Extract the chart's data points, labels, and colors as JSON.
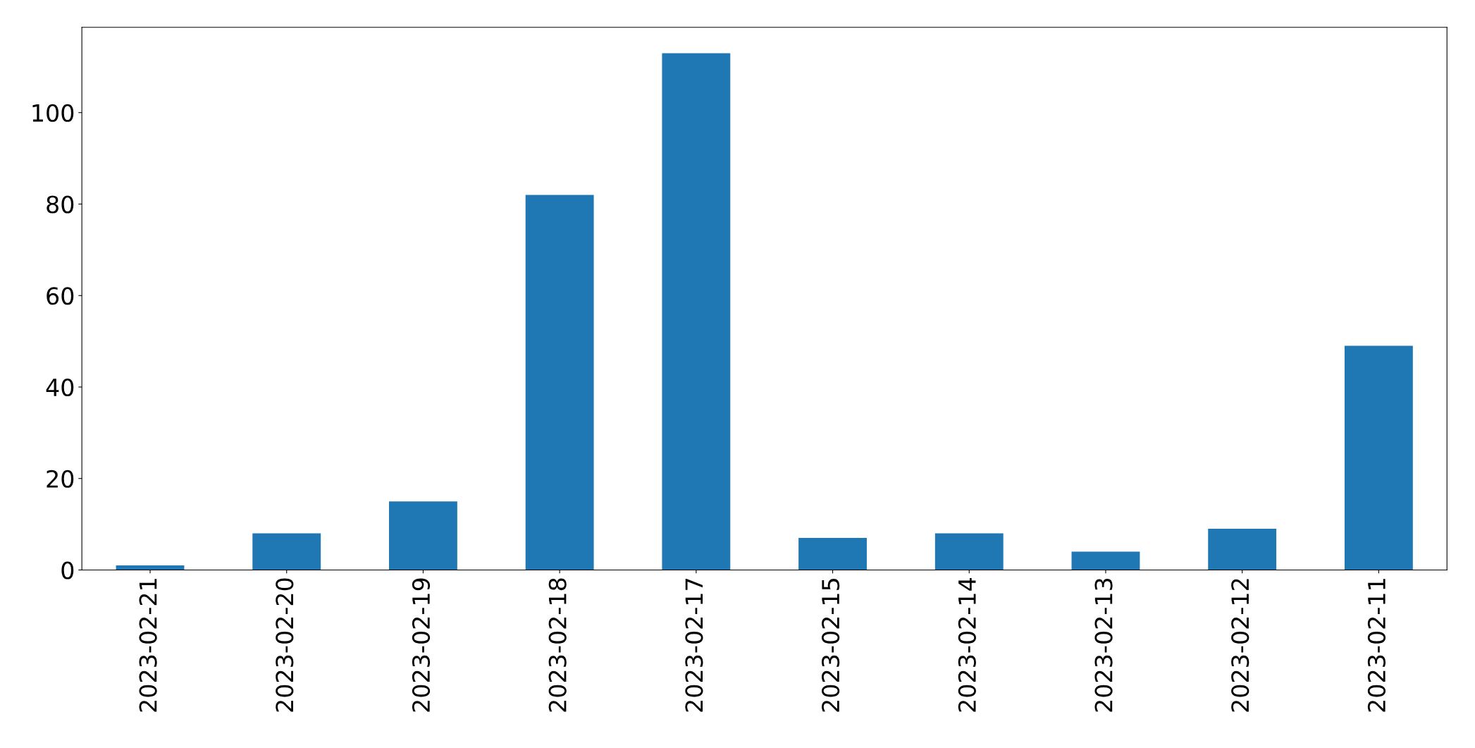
{
  "chart_data": {
    "type": "bar",
    "categories": [
      "2023-02-21",
      "2023-02-20",
      "2023-02-19",
      "2023-02-18",
      "2023-02-17",
      "2023-02-15",
      "2023-02-14",
      "2023-02-13",
      "2023-02-12",
      "2023-02-11"
    ],
    "values": [
      1,
      8,
      15,
      82,
      113,
      7,
      8,
      4,
      9,
      49
    ],
    "color": "#1f77b4",
    "ylim": [
      0,
      118.65
    ],
    "yticks": [
      0,
      20,
      40,
      60,
      80,
      100
    ],
    "grid": false,
    "legend": false
  }
}
